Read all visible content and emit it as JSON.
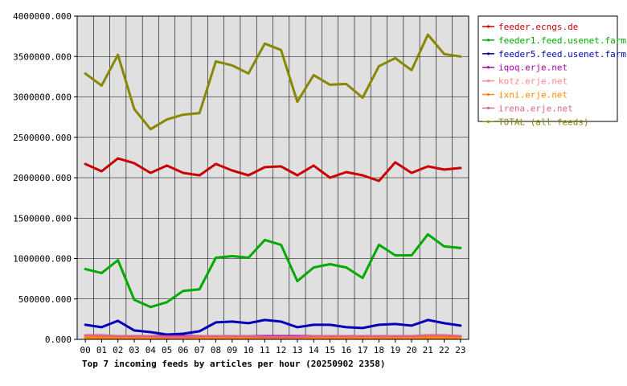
{
  "chart_data": {
    "type": "line",
    "title": "Top 7 incoming feeds by articles per hour (20250902 2358)",
    "xlabel": "",
    "ylabel": "",
    "x": [
      "00",
      "01",
      "02",
      "03",
      "04",
      "05",
      "06",
      "07",
      "08",
      "09",
      "10",
      "11",
      "12",
      "13",
      "14",
      "15",
      "16",
      "17",
      "18",
      "19",
      "20",
      "21",
      "22",
      "23"
    ],
    "ylim": [
      0,
      4000000
    ],
    "yticks": [
      0,
      500000,
      1000000,
      1500000,
      2000000,
      2500000,
      3000000,
      3500000,
      4000000
    ],
    "ytick_labels": [
      "0.000",
      "500000.000",
      "1000000.000",
      "1500000.000",
      "2000000.000",
      "2500000.000",
      "3000000.000",
      "3500000.000",
      "4000000.000"
    ],
    "grid": true,
    "background": "#e0e0e0",
    "legend_position": "right",
    "series": [
      {
        "name": "feeder.ecngs.de",
        "color": "#cc0000",
        "values": [
          2170000,
          2080000,
          2240000,
          2180000,
          2060000,
          2150000,
          2060000,
          2030000,
          2170000,
          2090000,
          2030000,
          2130000,
          2140000,
          2030000,
          2150000,
          2000000,
          2070000,
          2030000,
          1960000,
          2190000,
          2060000,
          2140000,
          2100000,
          2120000
        ]
      },
      {
        "name": "feeder1.feed.usenet.farm",
        "color": "#00aa00",
        "values": [
          870000,
          820000,
          980000,
          490000,
          400000,
          460000,
          600000,
          620000,
          1010000,
          1030000,
          1010000,
          1230000,
          1170000,
          720000,
          890000,
          930000,
          890000,
          760000,
          1170000,
          1040000,
          1040000,
          1300000,
          1150000,
          1130000
        ]
      },
      {
        "name": "feeder5.feed.usenet.farm",
        "color": "#0000bb",
        "values": [
          180000,
          150000,
          230000,
          110000,
          90000,
          60000,
          70000,
          100000,
          210000,
          220000,
          200000,
          240000,
          220000,
          150000,
          180000,
          180000,
          150000,
          140000,
          180000,
          190000,
          170000,
          240000,
          200000,
          170000
        ]
      },
      {
        "name": "iqoq.erje.net",
        "color": "#aa00aa",
        "values": [
          40000,
          40000,
          40000,
          40000,
          40000,
          40000,
          40000,
          40000,
          40000,
          40000,
          40000,
          40000,
          40000,
          40000,
          40000,
          40000,
          40000,
          40000,
          40000,
          40000,
          40000,
          40000,
          40000,
          40000
        ]
      },
      {
        "name": "kotz.erje.net",
        "color": "#ff8888",
        "values": [
          30000,
          30000,
          30000,
          30000,
          30000,
          30000,
          30000,
          30000,
          30000,
          30000,
          30000,
          30000,
          30000,
          30000,
          30000,
          30000,
          30000,
          30000,
          30000,
          30000,
          30000,
          30000,
          30000,
          30000
        ]
      },
      {
        "name": "ixni.erje.net",
        "color": "#ff8800",
        "values": [
          20000,
          20000,
          20000,
          20000,
          20000,
          20000,
          20000,
          20000,
          20000,
          20000,
          20000,
          20000,
          20000,
          20000,
          20000,
          20000,
          20000,
          20000,
          20000,
          20000,
          20000,
          20000,
          20000,
          20000
        ]
      },
      {
        "name": "irena.erje.net",
        "color": "#dd6688",
        "values": [
          50000,
          50000,
          40000,
          40000,
          40000,
          30000,
          30000,
          40000,
          40000,
          40000,
          40000,
          30000,
          30000,
          30000,
          40000,
          40000,
          40000,
          40000,
          40000,
          40000,
          40000,
          50000,
          50000,
          40000
        ]
      },
      {
        "name": "TOTAL (all feeds)",
        "color": "#888800",
        "values": [
          3290000,
          3140000,
          3520000,
          2850000,
          2600000,
          2720000,
          2780000,
          2800000,
          3440000,
          3390000,
          3290000,
          3660000,
          3580000,
          2940000,
          3270000,
          3150000,
          3160000,
          2990000,
          3380000,
          3480000,
          3330000,
          3770000,
          3530000,
          3500000
        ]
      }
    ]
  }
}
